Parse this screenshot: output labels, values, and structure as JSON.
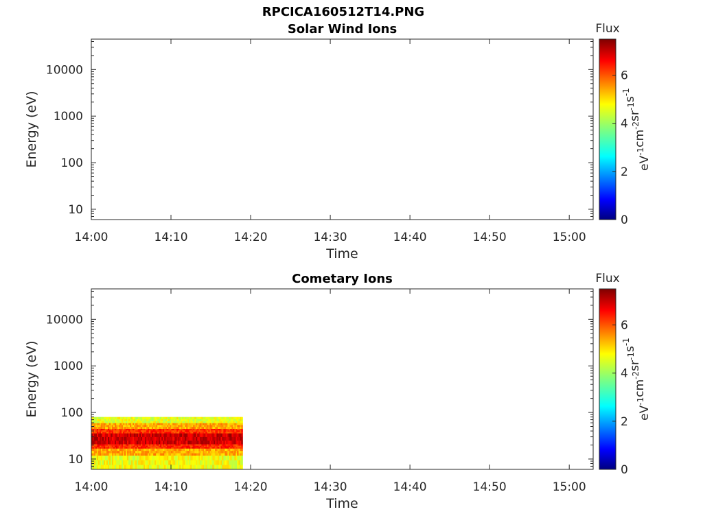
{
  "figure": {
    "title": "RPCICA160512T14.PNG"
  },
  "chart_data": [
    {
      "type": "heatmap",
      "title": "Solar Wind Ions",
      "xlabel": "Time",
      "ylabel": "Energy (eV)",
      "x_ticks": [
        "14:00",
        "14:10",
        "14:20",
        "14:30",
        "14:40",
        "14:50",
        "15:00"
      ],
      "xlim": [
        "14:00",
        "15:03"
      ],
      "y_scale": "log",
      "y_ticks": [
        10,
        100,
        1000,
        10000
      ],
      "ylim": [
        6,
        45000
      ],
      "colorbar": {
        "label": "Flux",
        "units": "eV-1 cm-2 sr-1 s-1",
        "ticks": [
          0,
          2,
          4,
          6
        ],
        "range": [
          0,
          7.5
        ],
        "colormap": "jet"
      },
      "data_blocks": []
    },
    {
      "type": "heatmap",
      "title": "Cometary Ions",
      "xlabel": "Time",
      "ylabel": "Energy (eV)",
      "x_ticks": [
        "14:00",
        "14:10",
        "14:20",
        "14:30",
        "14:40",
        "14:50",
        "15:00"
      ],
      "xlim": [
        "14:00",
        "15:03"
      ],
      "y_scale": "log",
      "y_ticks": [
        10,
        100,
        1000,
        10000
      ],
      "ylim": [
        6,
        45000
      ],
      "colorbar": {
        "label": "Flux",
        "units": "eV-1 cm-2 sr-1 s-1",
        "ticks": [
          0,
          2,
          4,
          6
        ],
        "range": [
          0,
          7.5
        ],
        "colormap": "jet"
      },
      "data_blocks": [
        {
          "time_start": "14:00",
          "time_end": "14:19",
          "energy_range": [
            6,
            80
          ],
          "energy_bands": [
            {
              "energy_range": [
                6,
                12
              ],
              "flux": 4.6
            },
            {
              "energy_range": [
                12,
                17
              ],
              "flux": 5.3
            },
            {
              "energy_range": [
                17,
                21
              ],
              "flux": 6.3
            },
            {
              "energy_range": [
                21,
                36
              ],
              "flux": 6.9
            },
            {
              "energy_range": [
                36,
                45
              ],
              "flux": 6.2
            },
            {
              "energy_range": [
                45,
                60
              ],
              "flux": 5.3
            },
            {
              "energy_range": [
                60,
                80
              ],
              "flux": 4.5
            }
          ]
        }
      ]
    }
  ]
}
